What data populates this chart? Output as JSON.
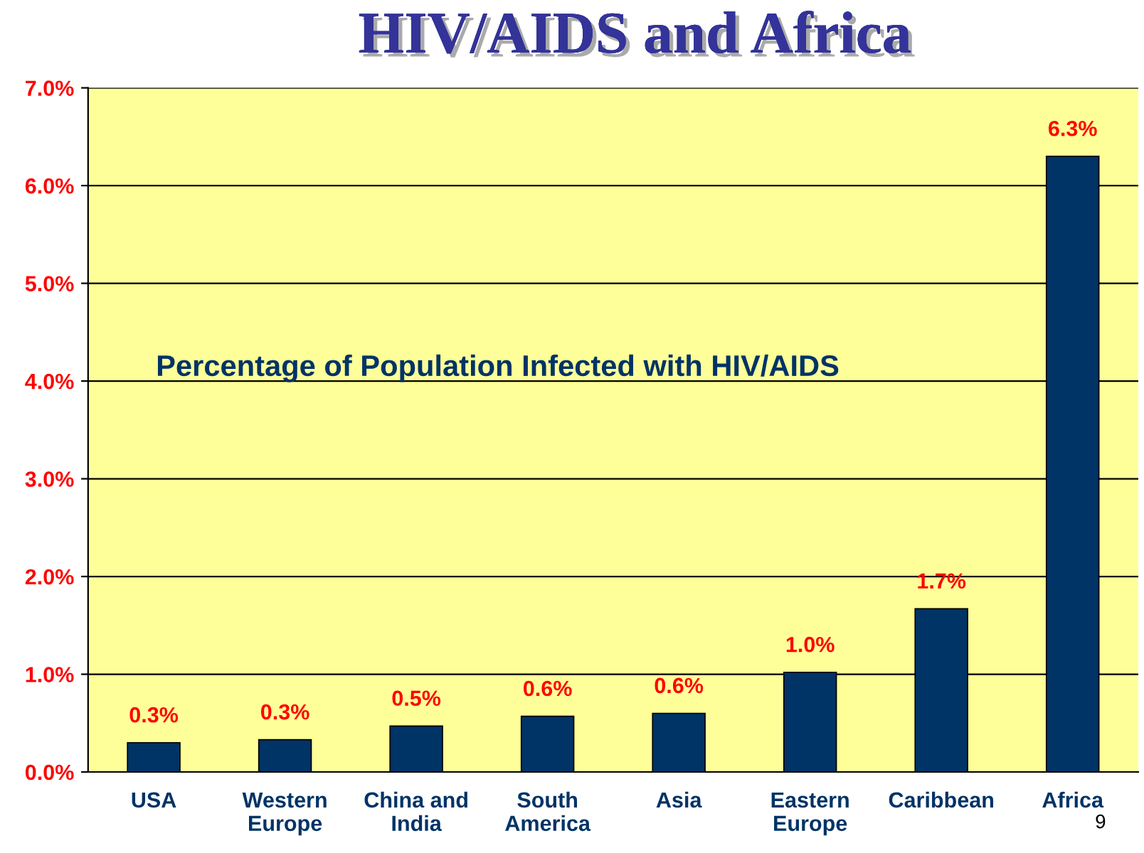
{
  "chart_data": {
    "type": "bar",
    "title": "HIV/AIDS and Africa",
    "categories": [
      "USA",
      "Western\nEurope",
      "China and\nIndia",
      "South\nAmerica",
      "Asia",
      "Eastern\nEurope",
      "Caribbean",
      "Africa"
    ],
    "values": [
      0.3,
      0.33,
      0.47,
      0.57,
      0.6,
      1.02,
      1.67,
      6.3
    ],
    "value_labels": [
      "0.3%",
      "0.3%",
      "0.5%",
      "0.6%",
      "0.6%",
      "1.0%",
      "1.7%",
      "6.3%"
    ],
    "color": "#003366",
    "ylim": [
      0,
      7
    ],
    "yticks": [
      {
        "value": 0,
        "label": "0.0%"
      },
      {
        "value": 1,
        "label": "1.0%"
      },
      {
        "value": 2,
        "label": "2.0%"
      },
      {
        "value": 3,
        "label": "3.0%"
      },
      {
        "value": 4,
        "label": "4.0%"
      },
      {
        "value": 5,
        "label": "5.0%"
      },
      {
        "value": 6,
        "label": "6.0%"
      },
      {
        "value": 7,
        "label": "7.0%"
      }
    ],
    "grid": "y",
    "annotations": [
      "Percentage of Population Infected with HIV/AIDS",
      "9"
    ]
  }
}
